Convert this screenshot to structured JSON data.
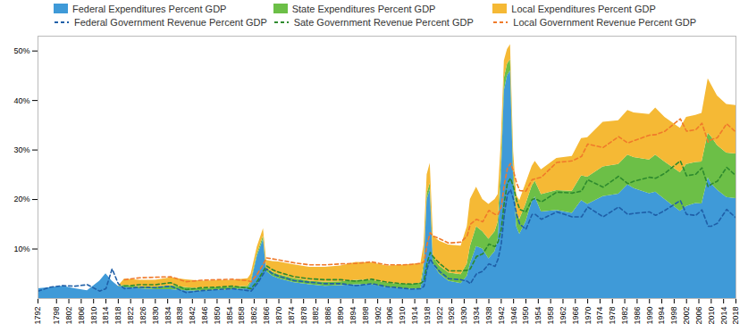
{
  "chart_data": {
    "type": "area",
    "stacked": true,
    "grid": false,
    "legend": "top",
    "x": [
      1792,
      1796,
      1800,
      1804,
      1808,
      1812,
      1814,
      1816,
      1818,
      1820,
      1825,
      1830,
      1835,
      1840,
      1845,
      1850,
      1855,
      1860,
      1861,
      1863,
      1865,
      1866,
      1868,
      1870,
      1875,
      1880,
      1885,
      1890,
      1895,
      1900,
      1905,
      1910,
      1913,
      1916,
      1917,
      1918,
      1919,
      1920,
      1922,
      1925,
      1929,
      1931,
      1932,
      1934,
      1936,
      1938,
      1940,
      1941,
      1942,
      1943,
      1944,
      1945,
      1946,
      1947,
      1948,
      1950,
      1952,
      1953,
      1955,
      1960,
      1965,
      1968,
      1970,
      1975,
      1980,
      1983,
      1985,
      1990,
      1992,
      1995,
      2000,
      2002,
      2005,
      2007,
      2009,
      2010,
      2012,
      2015,
      2018
    ],
    "xlim": [
      1792,
      2018
    ],
    "xticks": [
      1792,
      1798,
      1802,
      1806,
      1810,
      1814,
      1818,
      1822,
      1826,
      1830,
      1834,
      1838,
      1842,
      1846,
      1850,
      1854,
      1858,
      1862,
      1866,
      1870,
      1874,
      1878,
      1882,
      1886,
      1890,
      1894,
      1898,
      1902,
      1906,
      1910,
      1914,
      1918,
      1922,
      1926,
      1930,
      1934,
      1938,
      1942,
      1946,
      1950,
      1954,
      1958,
      1962,
      1966,
      1970,
      1974,
      1978,
      1982,
      1986,
      1990,
      1994,
      1998,
      2002,
      2006,
      2010,
      2014,
      2018
    ],
    "ylim": [
      0,
      53
    ],
    "yticks": [
      {
        "value": 10,
        "label": "10%"
      },
      {
        "value": 20,
        "label": "20%"
      },
      {
        "value": 30,
        "label": "30%"
      },
      {
        "value": 40,
        "label": "40%"
      },
      {
        "value": 50,
        "label": "50%"
      }
    ],
    "series": [
      {
        "name": "Federal Expenditures Percent GDP",
        "type": "area",
        "color": "#3f9ad8",
        "values": [
          2.0,
          2.2,
          2.5,
          2.0,
          1.6,
          3.5,
          5.0,
          3.5,
          2.5,
          2.3,
          2.0,
          1.8,
          1.8,
          1.6,
          1.5,
          1.7,
          1.8,
          2.0,
          3.0,
          8.5,
          12.0,
          5.5,
          4.5,
          4.0,
          3.2,
          2.8,
          2.5,
          2.6,
          2.8,
          2.8,
          2.2,
          2.0,
          1.9,
          2.0,
          6.0,
          20.0,
          22.0,
          7.0,
          5.0,
          3.5,
          3.0,
          4.5,
          7.0,
          10.5,
          10.0,
          8.0,
          9.5,
          12.0,
          24.0,
          42.0,
          45.0,
          46.0,
          24.0,
          14.5,
          13.0,
          15.5,
          19.5,
          20.5,
          17.5,
          17.8,
          17.2,
          19.8,
          19.0,
          20.6,
          21.1,
          23.0,
          22.2,
          21.2,
          21.5,
          20.0,
          17.6,
          18.6,
          19.2,
          19.1,
          24.4,
          23.2,
          21.9,
          20.4,
          20.2
        ]
      },
      {
        "name": "State Expenditures Percent GDP",
        "type": "area",
        "color": "#6cbf47",
        "values": [
          0,
          0,
          0,
          0,
          0,
          0,
          0,
          0,
          0,
          0.4,
          0.4,
          0.5,
          0.8,
          0.6,
          0.5,
          0.5,
          0.5,
          0.5,
          0.5,
          0.5,
          0.6,
          0.6,
          0.8,
          0.8,
          0.8,
          0.7,
          0.8,
          0.8,
          0.9,
          0.9,
          0.9,
          0.9,
          1.0,
          1.1,
          1.1,
          1.2,
          1.3,
          1.4,
          1.6,
          1.7,
          1.8,
          2.5,
          3.5,
          4.0,
          3.5,
          4.0,
          4.0,
          3.5,
          3.0,
          2.5,
          2.3,
          2.3,
          2.5,
          2.8,
          3.0,
          3.5,
          3.2,
          3.2,
          3.5,
          4.0,
          4.5,
          5.0,
          5.5,
          6.0,
          6.0,
          6.0,
          6.3,
          6.8,
          7.5,
          7.6,
          7.8,
          8.5,
          8.3,
          8.5,
          9.0,
          9.5,
          9.0,
          9.0,
          9.0
        ]
      },
      {
        "name": "Local Expenditures Percent GDP",
        "type": "area",
        "color": "#f5b935",
        "values": [
          0,
          0,
          0,
          0,
          0,
          0,
          0,
          0,
          0,
          1.2,
          1.3,
          1.4,
          1.6,
          1.6,
          1.5,
          1.4,
          1.4,
          1.5,
          1.4,
          1.4,
          1.5,
          1.6,
          2.2,
          2.6,
          2.8,
          2.8,
          3.0,
          3.2,
          3.6,
          3.5,
          3.5,
          3.8,
          4.0,
          4.0,
          3.8,
          3.8,
          4.0,
          4.2,
          5.0,
          5.6,
          5.8,
          7.5,
          9.5,
          8.0,
          6.5,
          7.0,
          6.5,
          5.5,
          4.5,
          3.5,
          3.0,
          3.0,
          3.2,
          3.5,
          3.8,
          4.2,
          4.0,
          4.0,
          5.0,
          6.5,
          7.0,
          7.5,
          8.0,
          9.0,
          8.8,
          9.0,
          9.0,
          9.2,
          9.5,
          9.0,
          9.0,
          9.5,
          9.5,
          9.8,
          11.0,
          10.5,
          10.0,
          9.8,
          9.8
        ]
      },
      {
        "name": "Federal Government Revenue Percent GDP",
        "type": "line",
        "line_style": "dashed",
        "color": "#1f5fa8",
        "values": [
          1.5,
          2.3,
          2.6,
          2.5,
          2.8,
          1.5,
          2.0,
          6.0,
          3.0,
          2.0,
          2.3,
          2.2,
          2.5,
          1.2,
          1.6,
          1.8,
          2.0,
          1.6,
          1.5,
          3.0,
          5.0,
          6.0,
          5.0,
          4.5,
          3.6,
          3.3,
          3.0,
          3.0,
          2.6,
          3.0,
          2.4,
          2.1,
          1.9,
          2.0,
          2.5,
          6.0,
          8.0,
          7.0,
          5.5,
          4.0,
          3.8,
          3.5,
          3.0,
          5.0,
          5.5,
          7.0,
          6.5,
          8.0,
          11.0,
          17.0,
          21.0,
          22.0,
          20.0,
          17.0,
          15.0,
          14.0,
          17.0,
          17.0,
          16.0,
          17.5,
          16.5,
          16.5,
          18.5,
          16.5,
          18.5,
          17.0,
          17.2,
          17.5,
          16.8,
          17.8,
          19.8,
          17.0,
          16.8,
          17.9,
          14.6,
          14.6,
          15.2,
          18.0,
          16.3
        ]
      },
      {
        "name": "Sate Government Revenue Percent GDP",
        "type": "line",
        "line_style": "dashed",
        "color": "#2e8b2e",
        "values": [
          null,
          null,
          null,
          null,
          null,
          null,
          null,
          null,
          null,
          0.5,
          0.5,
          0.6,
          0.7,
          0.6,
          0.6,
          0.5,
          0.5,
          0.5,
          0.5,
          0.5,
          0.6,
          0.6,
          0.8,
          0.8,
          0.8,
          0.7,
          0.8,
          0.8,
          0.9,
          0.9,
          0.9,
          0.9,
          1.0,
          1.1,
          1.1,
          1.2,
          1.3,
          1.4,
          1.6,
          1.6,
          1.8,
          2.2,
          3.0,
          3.5,
          3.5,
          4.0,
          4.0,
          3.5,
          3.0,
          2.5,
          2.3,
          2.3,
          2.5,
          2.8,
          3.0,
          3.5,
          3.0,
          3.2,
          3.5,
          4.0,
          4.8,
          5.2,
          5.5,
          6.0,
          6.2,
          6.2,
          6.5,
          7.0,
          7.5,
          7.5,
          8.0,
          7.8,
          8.3,
          8.5,
          8.0,
          8.5,
          8.5,
          8.5,
          8.5
        ]
      },
      {
        "name": "Local Government Revenue Percent GDP",
        "type": "line",
        "line_style": "dashed",
        "color": "#f07a2a",
        "values": [
          null,
          null,
          null,
          null,
          null,
          null,
          null,
          null,
          null,
          1.3,
          1.4,
          1.5,
          1.2,
          1.6,
          1.5,
          1.5,
          1.4,
          1.5,
          1.4,
          1.4,
          1.4,
          1.6,
          2.2,
          2.5,
          2.8,
          2.8,
          3.0,
          3.2,
          3.6,
          3.5,
          3.5,
          3.8,
          4.0,
          4.0,
          3.8,
          3.8,
          4.0,
          4.2,
          5.0,
          5.6,
          5.8,
          7.0,
          9.0,
          7.5,
          6.5,
          6.8,
          6.5,
          5.5,
          4.5,
          3.5,
          3.0,
          3.0,
          3.2,
          3.5,
          3.8,
          4.2,
          4.0,
          4.0,
          5.0,
          6.0,
          6.5,
          7.0,
          7.2,
          8.0,
          8.0,
          8.2,
          8.2,
          8.5,
          8.8,
          8.5,
          8.5,
          9.0,
          9.0,
          9.0,
          9.0,
          9.0,
          8.8,
          8.8,
          8.8
        ]
      }
    ]
  }
}
